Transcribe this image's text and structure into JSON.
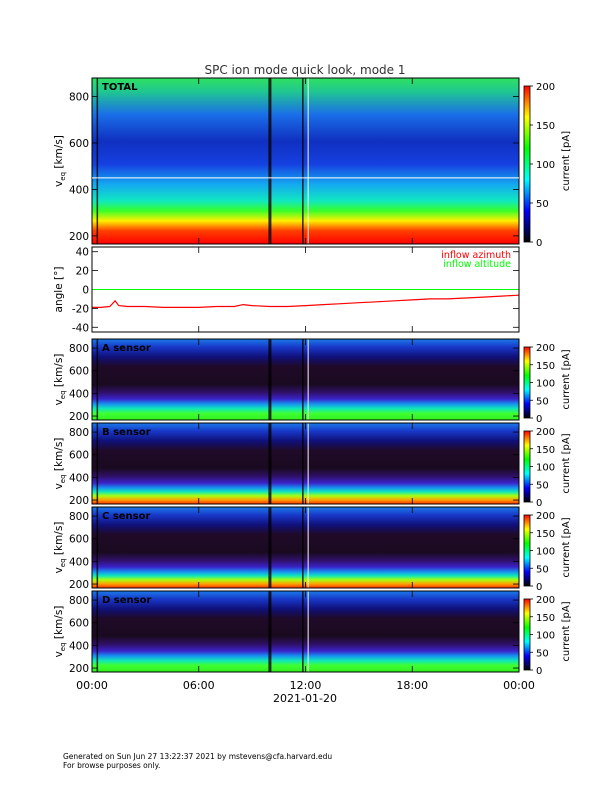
{
  "footer": {
    "line1": "Generated on Sun Jun 27 13:22:37 2021 by mstevens@cfa.harvard.edu",
    "line2": "For browse purposes only."
  },
  "chart_data": [
    {
      "type": "heatmap",
      "panel": "total",
      "title": "SPC ion mode quick look, mode 1",
      "label": "TOTAL",
      "ylabel_main": "v",
      "ylabel_sub": "eq",
      "ylabel_units": "[km/s]",
      "ylim": [
        165,
        880
      ],
      "yticks": [
        200,
        400,
        600,
        800
      ],
      "colorbar_label": "current [pA]",
      "colorbar_ticks": [
        0,
        50,
        100,
        150,
        200
      ],
      "colorbar_range": [
        0,
        200
      ],
      "colormap": [
        "#000000",
        "#0000ff",
        "#00ffff",
        "#00ff00",
        "#ffff00",
        "#ff0000"
      ]
    },
    {
      "type": "line",
      "panel": "angle",
      "ylabel": "angle [°]",
      "ylim": [
        -45,
        45
      ],
      "yticks": [
        -40,
        -20,
        0,
        20,
        40
      ],
      "legend": "top-right",
      "series": [
        {
          "name": "inflow azimuth",
          "color": "#ff0000",
          "x_hours": [
            0,
            0.5,
            1.0,
            1.3,
            1.5,
            2.0,
            3.0,
            4.0,
            5.0,
            6.0,
            7.0,
            8.0,
            8.5,
            9.0,
            10.0,
            11.0,
            12.0,
            13.0,
            14.0,
            15.0,
            16.0,
            17.0,
            18.0,
            19.0,
            20.0,
            21.0,
            22.0,
            23.0,
            24.0
          ],
          "values": [
            -19,
            -19,
            -18,
            -12,
            -17,
            -18,
            -18,
            -19,
            -19,
            -19,
            -18,
            -18,
            -16,
            -17,
            -18,
            -18,
            -17,
            -16,
            -15,
            -14,
            -13,
            -12,
            -11,
            -10,
            -10,
            -9,
            -8,
            -7,
            -6
          ]
        },
        {
          "name": "inflow altitude",
          "color": "#00ff00",
          "x_hours": [
            0,
            24
          ],
          "values": [
            0,
            0
          ]
        }
      ]
    },
    {
      "type": "heatmap",
      "panel": "A",
      "label": "A sensor",
      "ylabel_main": "v",
      "ylabel_sub": "eq",
      "ylabel_units": "[km/s]",
      "ylim": [
        165,
        880
      ],
      "yticks": [
        200,
        400,
        600,
        800
      ],
      "colorbar_label": "current [pA]",
      "colorbar_ticks": [
        0,
        50,
        100,
        150,
        200
      ]
    },
    {
      "type": "heatmap",
      "panel": "B",
      "label": "B sensor",
      "ylabel_main": "v",
      "ylabel_sub": "eq",
      "ylabel_units": "[km/s]",
      "ylim": [
        165,
        880
      ],
      "yticks": [
        200,
        400,
        600,
        800
      ],
      "colorbar_label": "current [pA]",
      "colorbar_ticks": [
        0,
        50,
        100,
        150,
        200
      ]
    },
    {
      "type": "heatmap",
      "panel": "C",
      "label": "C sensor",
      "ylabel_main": "v",
      "ylabel_sub": "eq",
      "ylabel_units": "[km/s]",
      "ylim": [
        165,
        880
      ],
      "yticks": [
        200,
        400,
        600,
        800
      ],
      "colorbar_label": "current [pA]",
      "colorbar_ticks": [
        0,
        50,
        100,
        150,
        200
      ]
    },
    {
      "type": "heatmap",
      "panel": "D",
      "label": "D sensor",
      "ylabel_main": "v",
      "ylabel_sub": "eq",
      "ylabel_units": "[km/s]",
      "ylim": [
        165,
        880
      ],
      "yticks": [
        200,
        400,
        600,
        800
      ],
      "colorbar_label": "current [pA]",
      "colorbar_ticks": [
        0,
        50,
        100,
        150,
        200
      ]
    }
  ],
  "x_axis": {
    "ticks": [
      "00:00",
      "06:00",
      "12:00",
      "18:00",
      "00:00"
    ],
    "tick_hours": [
      0,
      6,
      12,
      18,
      24
    ],
    "date_label": "2021-01-20",
    "xlim_hours": [
      0,
      24
    ]
  }
}
